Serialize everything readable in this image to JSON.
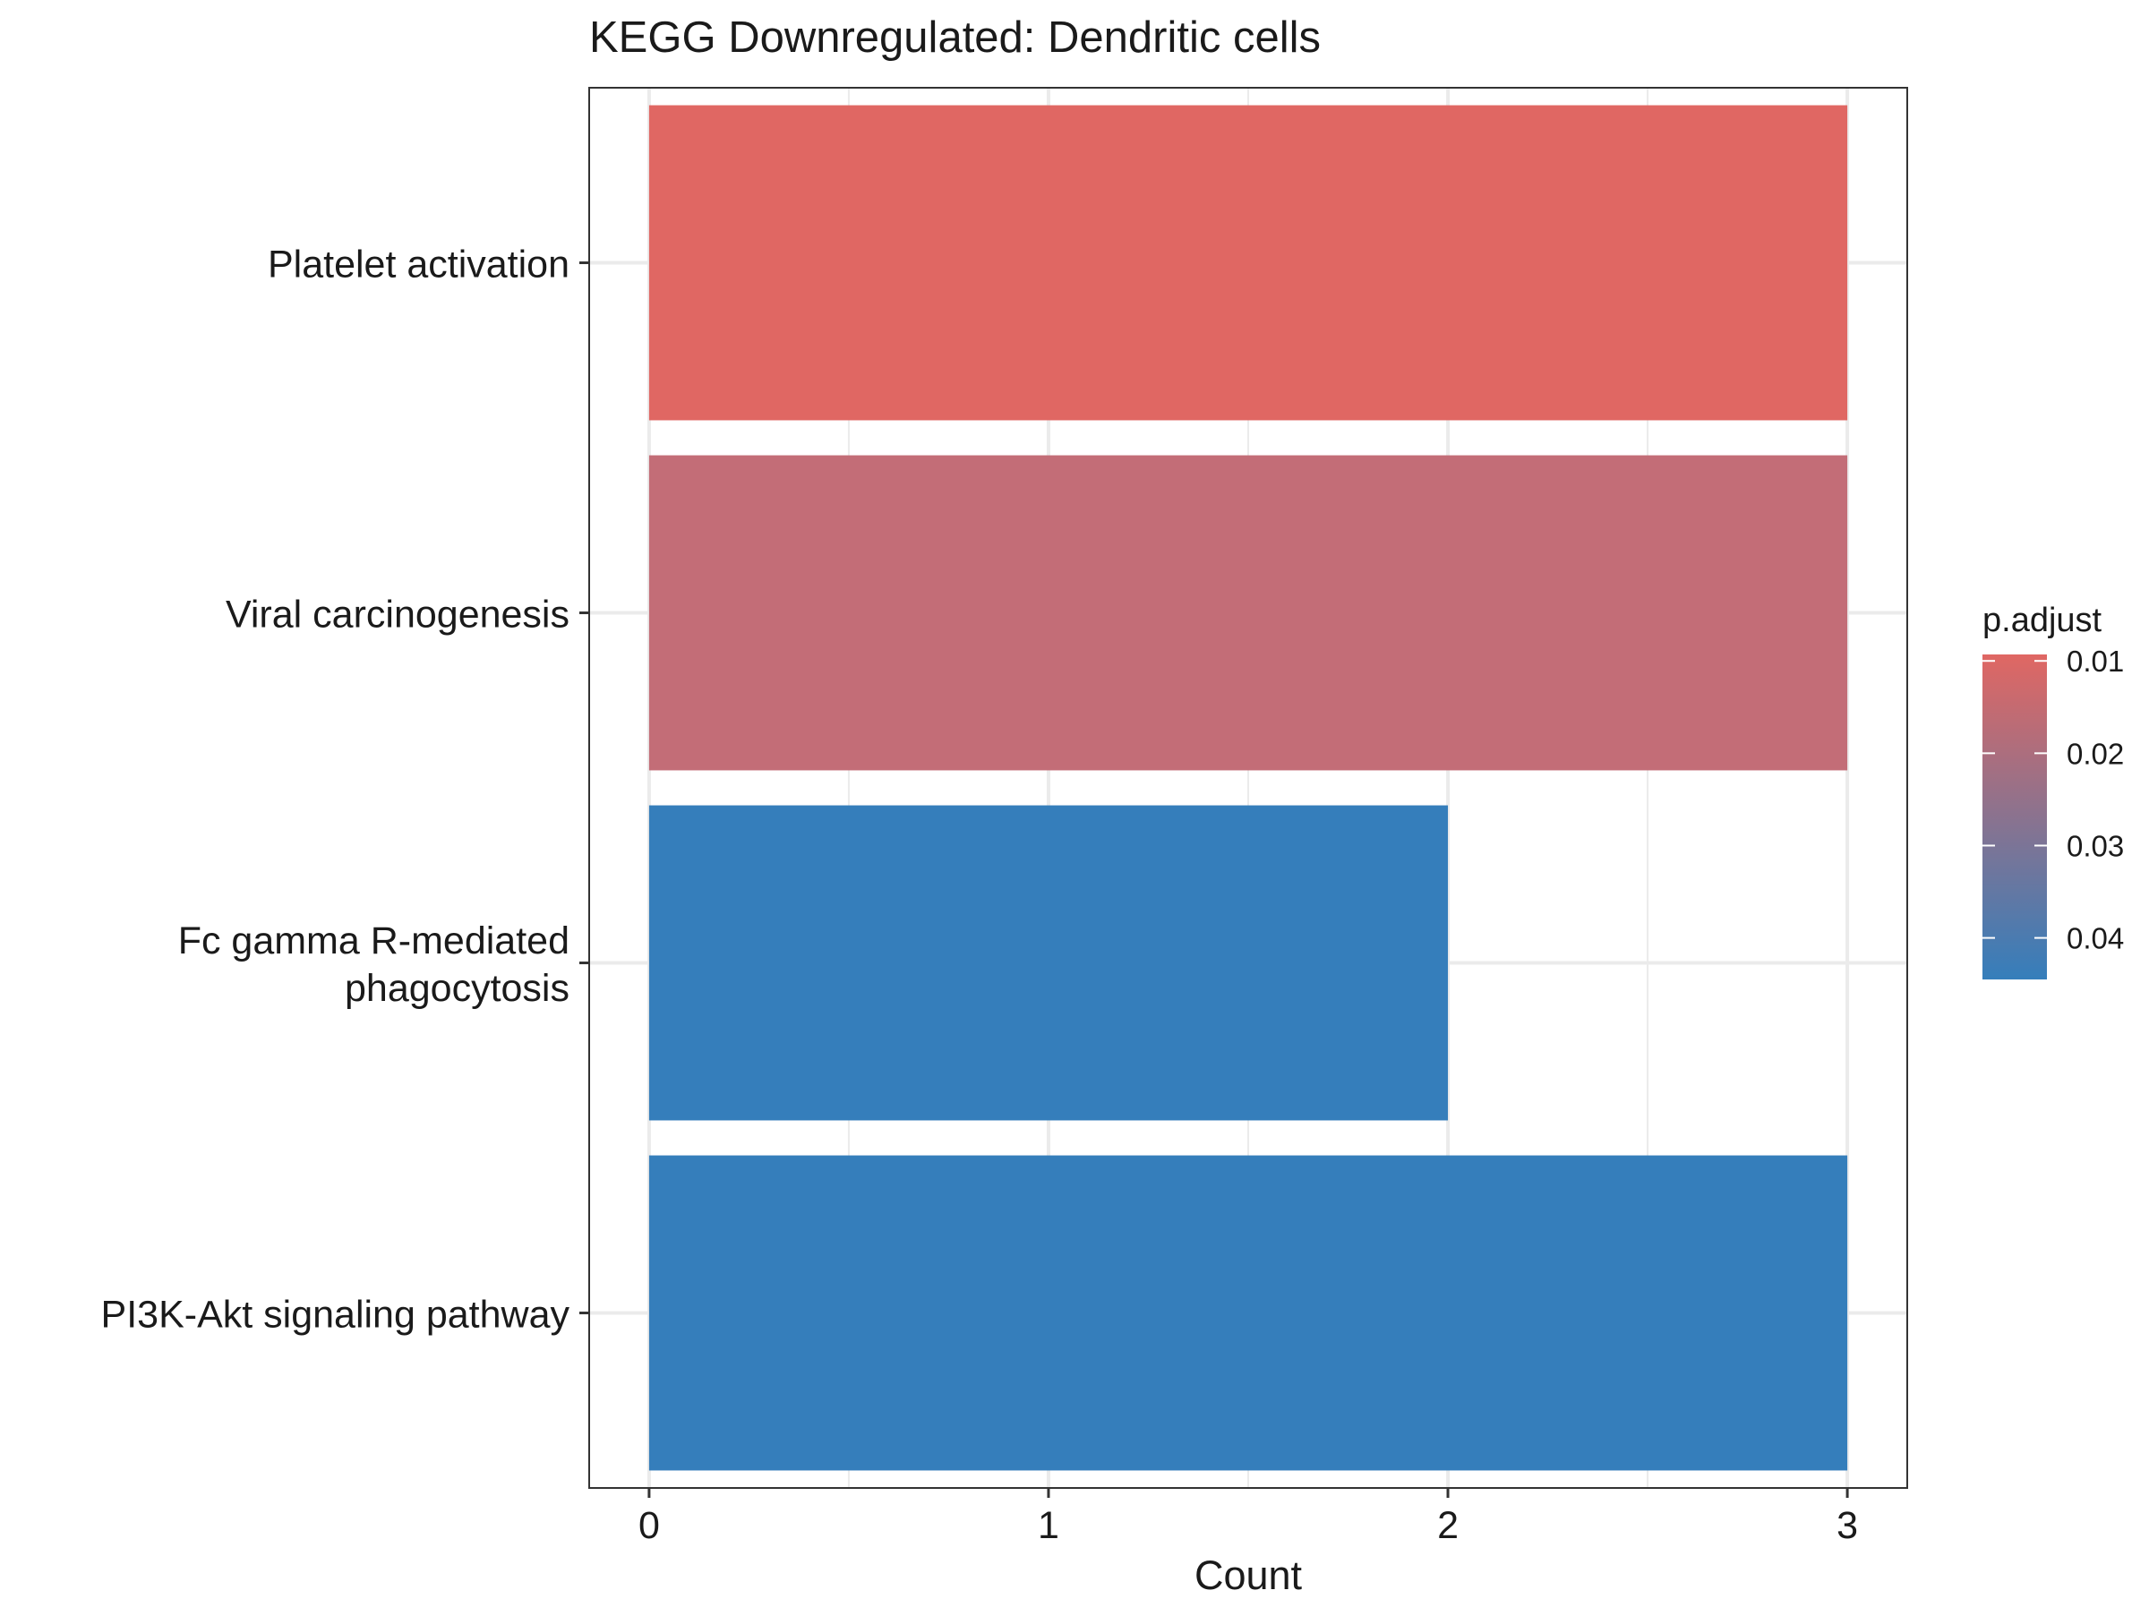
{
  "chart_data": {
    "type": "bar",
    "orientation": "horizontal",
    "title": "KEGG Downregulated: Dendritic cells",
    "xlabel": "Count",
    "ylabel": "",
    "xlim": [
      -0.15,
      3.15
    ],
    "x_ticks": [
      "0",
      "1",
      "2",
      "3"
    ],
    "categories": [
      [
        "Platelet activation"
      ],
      [
        "Viral carcinogenesis"
      ],
      [
        "Fc gamma R-mediated",
        "phagocytosis"
      ],
      [
        "PI3K-Akt signaling pathway"
      ]
    ],
    "values": [
      3,
      3,
      2,
      3
    ],
    "p_adjust": [
      0.0093,
      0.022,
      0.0445,
      0.0445
    ],
    "bar_colors": [
      "#e06763",
      "#c36d77",
      "#357ebb",
      "#357ebb"
    ],
    "grid": true,
    "legend": {
      "title": "p.adjust",
      "placement": "right",
      "ticks": [
        "0.01",
        "0.02",
        "0.03",
        "0.04"
      ],
      "tick_values": [
        0.01,
        0.02,
        0.03,
        0.04
      ],
      "range": [
        0.0093,
        0.0445
      ],
      "color_low": "#e06763",
      "color_high": "#357ebb"
    }
  }
}
